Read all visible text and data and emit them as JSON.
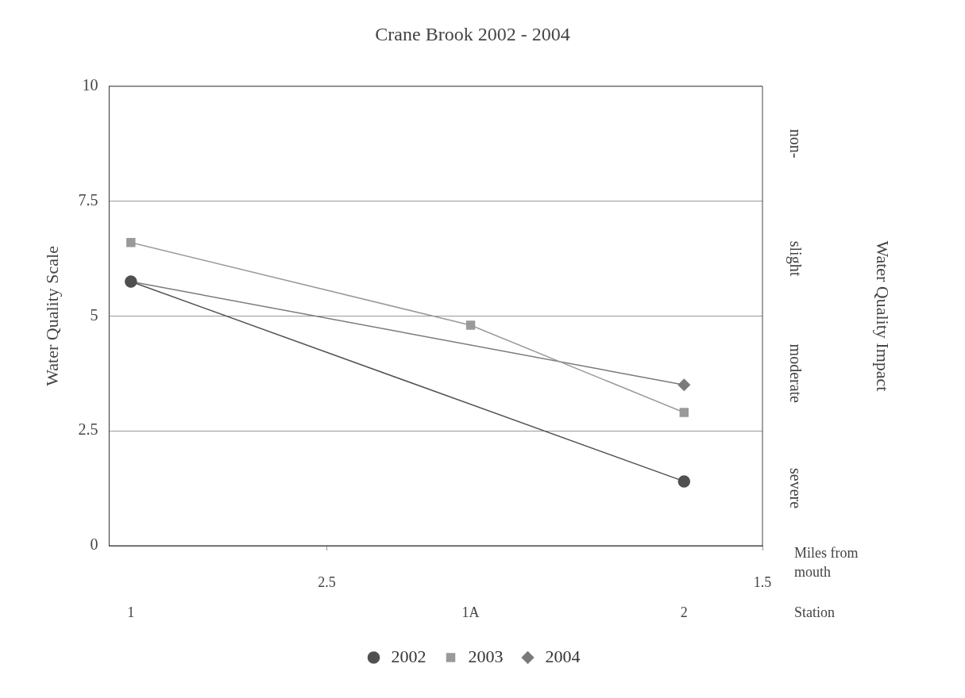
{
  "chart_data": {
    "type": "line",
    "title": "Crane Brook 2002 - 2004",
    "ylabel": "Water Quality Scale",
    "xlabel": "Miles from mouth",
    "x": [
      2.95,
      2.17,
      1.68
    ],
    "series": [
      {
        "name": "2002",
        "color": "#505050",
        "marker": "circle",
        "values": [
          5.75,
          null,
          1.4
        ]
      },
      {
        "name": "2003",
        "color": "#9a9a9a",
        "marker": "square",
        "values": [
          6.6,
          4.8,
          2.9
        ]
      },
      {
        "name": "2004",
        "color": "#7a7a7a",
        "marker": "diamond",
        "values": [
          5.75,
          null,
          3.5
        ]
      }
    ],
    "xlim": [
      3,
      1.5
    ],
    "xticks": [
      2.5,
      1.5
    ],
    "ylim": [
      0,
      10
    ],
    "yticks": [
      0,
      2.5,
      5,
      7.5,
      10
    ],
    "annotations": [
      "1",
      "1A",
      "2",
      "Station",
      "non-",
      "slight",
      "moderate",
      "severe",
      "Water Quality Impact"
    ],
    "grid": "y",
    "legend": "bottom",
    "line_style": "solid"
  }
}
